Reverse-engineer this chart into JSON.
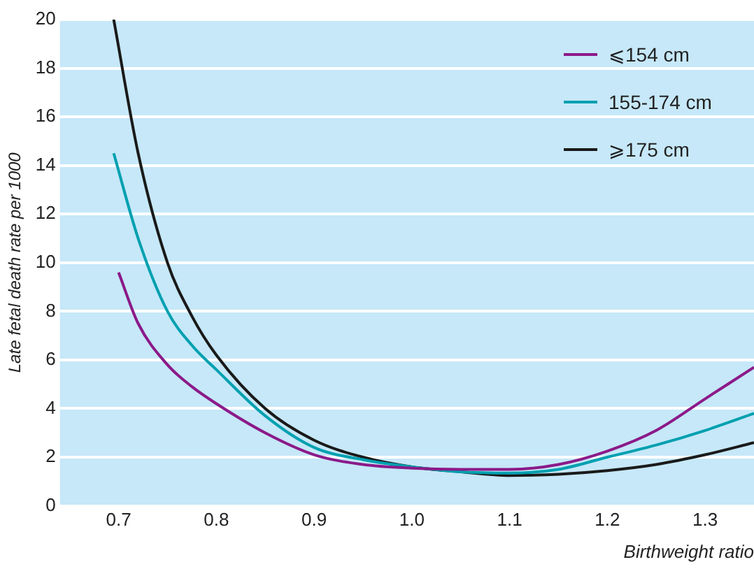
{
  "chart_data": {
    "type": "line",
    "xlabel": "Birthweight ratio",
    "ylabel": "Late fetal death rate per 1000",
    "xlim": [
      0.64,
      1.35
    ],
    "xticks": [
      {
        "value": 0.7,
        "label": "0.7"
      },
      {
        "value": 0.8,
        "label": "0.8"
      },
      {
        "value": 0.9,
        "label": "0.9"
      },
      {
        "value": 1.0,
        "label": "1.0"
      },
      {
        "value": 1.1,
        "label": "1.1"
      },
      {
        "value": 1.2,
        "label": "1.2"
      },
      {
        "value": 1.3,
        "label": "1.3"
      }
    ],
    "ylim": [
      0,
      20
    ],
    "yticks": [
      0,
      2,
      4,
      6,
      8,
      10,
      12,
      14,
      16,
      18,
      20
    ],
    "grid": "y",
    "legend": "top right",
    "marker": "none",
    "line_style": "solid",
    "series": [
      {
        "name": "⩽154 cm",
        "color": "#8b1a89",
        "x": [
          0.7,
          0.72,
          0.75,
          0.775,
          0.8,
          0.85,
          0.9,
          0.95,
          1.0,
          1.05,
          1.1,
          1.15,
          1.2,
          1.25,
          1.3,
          1.35
        ],
        "values": [
          9.6,
          7.5,
          5.8,
          4.9,
          4.2,
          3.0,
          2.1,
          1.7,
          1.55,
          1.5,
          1.5,
          1.7,
          2.25,
          3.1,
          4.4,
          5.7
        ]
      },
      {
        "name": "155-174 cm",
        "color": "#00a0b0",
        "x": [
          0.695,
          0.72,
          0.75,
          0.775,
          0.8,
          0.85,
          0.9,
          0.95,
          1.0,
          1.05,
          1.1,
          1.15,
          1.2,
          1.25,
          1.3,
          1.35
        ],
        "values": [
          14.5,
          11,
          8.0,
          6.6,
          5.6,
          3.7,
          2.4,
          1.9,
          1.6,
          1.4,
          1.35,
          1.5,
          2.0,
          2.5,
          3.1,
          3.8
        ]
      },
      {
        "name": "⩾175 cm",
        "color": "#1a1a1a",
        "x": [
          0.695,
          0.72,
          0.75,
          0.775,
          0.8,
          0.85,
          0.9,
          0.95,
          1.0,
          1.05,
          1.1,
          1.15,
          1.2,
          1.25,
          1.3,
          1.35
        ],
        "values": [
          20,
          14.5,
          10,
          7.8,
          6.2,
          4.0,
          2.7,
          2.0,
          1.6,
          1.4,
          1.25,
          1.3,
          1.45,
          1.7,
          2.1,
          2.6
        ]
      }
    ]
  }
}
